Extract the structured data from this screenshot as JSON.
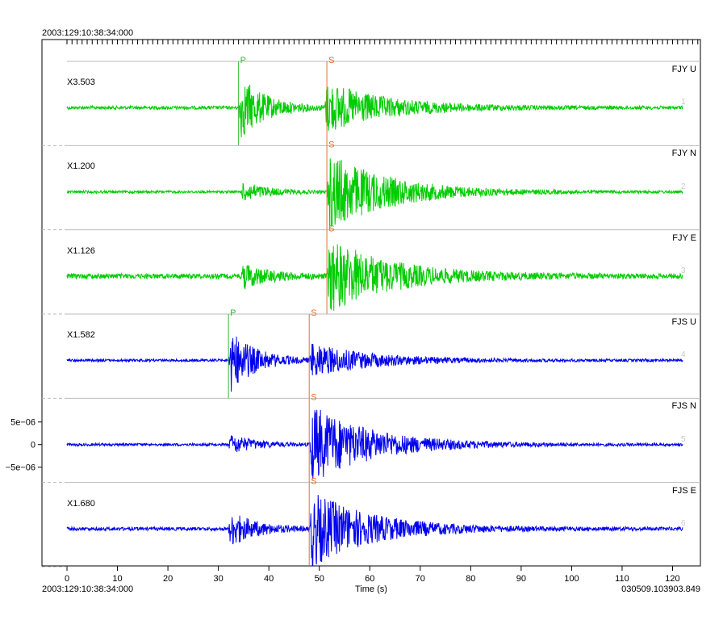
{
  "header": {
    "start_time_top": "2003:129:10:38:34:000",
    "start_time_bottom": "2003:129:10:38:34:000",
    "file_id": "030509.103903.849"
  },
  "chart_data": {
    "type": "line",
    "xlabel": "Time (s)",
    "xlim": [
      0,
      125
    ],
    "x_ticks": [
      0,
      10,
      20,
      30,
      40,
      50,
      60,
      70,
      80,
      90,
      100,
      110,
      120
    ],
    "grid": false,
    "traces": [
      {
        "label": "FJY U",
        "number": "1",
        "scale": "X3.503",
        "color": "#00cc00",
        "onset": 34,
        "s_time": 51,
        "duration": 122,
        "noise": 0.04,
        "p_amp": 0.8,
        "s_amp": 0.6,
        "picks": [
          {
            "phase": "P",
            "time": 34,
            "color": "#33bb33"
          },
          {
            "phase": "S",
            "time": 51.5,
            "color": "#e07030"
          }
        ]
      },
      {
        "label": "FJY N",
        "number": "2",
        "scale": "X1.200",
        "color": "#00cc00",
        "onset": 34.5,
        "s_time": 51.5,
        "duration": 122,
        "noise": 0.03,
        "p_amp": 0.25,
        "s_amp": 0.95,
        "picks": [
          {
            "phase": "S",
            "time": 51.5,
            "color": "#e07030"
          }
        ]
      },
      {
        "label": "FJY E",
        "number": "3",
        "scale": "X1.126",
        "color": "#00cc00",
        "onset": 34.5,
        "s_time": 51.5,
        "duration": 122,
        "noise": 0.06,
        "p_amp": 0.3,
        "s_amp": 0.9,
        "picks": [
          {
            "phase": "S",
            "time": 51.5,
            "color": "#e07030"
          }
        ]
      },
      {
        "label": "FJS U",
        "number": "4",
        "scale": "X1.582",
        "color": "#0000ee",
        "onset": 32,
        "s_time": 48,
        "duration": 122,
        "noise": 0.03,
        "p_amp": 0.8,
        "s_amp": 0.4,
        "picks": [
          {
            "phase": "P",
            "time": 32,
            "color": "#33bb33"
          },
          {
            "phase": "S",
            "time": 48,
            "color": "#e07030"
          }
        ]
      },
      {
        "label": "FJS N",
        "number": "5",
        "scale": "",
        "color": "#0000ee",
        "onset": 32,
        "s_time": 48,
        "duration": 122,
        "noise": 0.03,
        "p_amp": 0.25,
        "s_amp": 0.95,
        "picks": [
          {
            "phase": "S",
            "time": 48,
            "color": "#e07030"
          }
        ]
      },
      {
        "label": "FJS E",
        "number": "6",
        "scale": "X1.680",
        "color": "#0000ee",
        "onset": 32,
        "s_time": 48,
        "duration": 122,
        "noise": 0.04,
        "p_amp": 0.45,
        "s_amp": 0.9,
        "picks": [
          {
            "phase": "S",
            "time": 48,
            "color": "#e07030"
          }
        ]
      }
    ],
    "y_axis": {
      "trace_index": 4,
      "ticks": [
        {
          "label": "5e−06",
          "value": 5e-06
        },
        {
          "label": "0",
          "value": 0
        },
        {
          "label": "−5e−06",
          "value": -5e-06
        }
      ]
    }
  }
}
